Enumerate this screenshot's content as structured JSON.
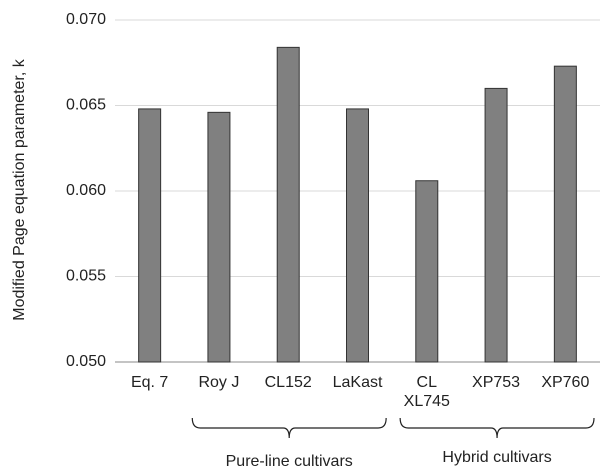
{
  "chart_data": {
    "type": "bar",
    "y_label": "Modified Page equation parameter, k",
    "categories": [
      "Eq. 7",
      "Roy J",
      "CL152",
      "LaKast",
      "CL XL745",
      "XP753",
      "XP760"
    ],
    "values": [
      0.0648,
      0.0646,
      0.0684,
      0.0648,
      0.0606,
      0.066,
      0.0673
    ],
    "color": "#808080",
    "ylim": [
      0.05,
      0.07
    ],
    "yticks": [
      {
        "value": 0.05,
        "label": "0.050"
      },
      0.055,
      {
        "value": 0.06,
        "label": "0.060"
      },
      0.065,
      {
        "value": 0.07,
        "label": "0.070"
      }
    ],
    "grid": true,
    "group_labels": [
      "Pure-line cultivars",
      "Hybrid cultivars"
    ]
  }
}
